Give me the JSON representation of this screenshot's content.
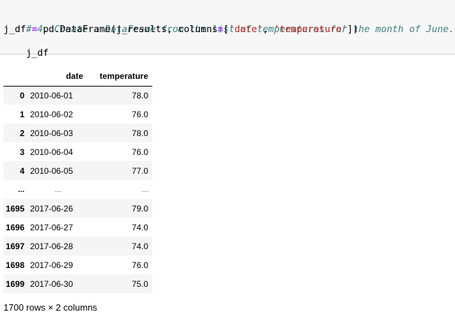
{
  "code_cell": {
    "line1_comment": "# 4. Create a DataFrame from the list of temperatures for the month of June.",
    "line2": {
      "var": "j_df",
      "op": "=",
      "call_open": "pd.DataFrame(j_results, columns",
      "eq": "=",
      "bracket_open": "[",
      "col1": "'date'",
      "comma": ", ",
      "col2": "'temperature'",
      "bracket_close": "])"
    },
    "line3": "j_df"
  },
  "dataframe": {
    "columns": [
      "date",
      "temperature"
    ],
    "rows": [
      {
        "index": "0",
        "date": "2010-06-01",
        "temperature": "78.0"
      },
      {
        "index": "1",
        "date": "2010-06-02",
        "temperature": "76.0"
      },
      {
        "index": "2",
        "date": "2010-06-03",
        "temperature": "78.0"
      },
      {
        "index": "3",
        "date": "2010-06-04",
        "temperature": "76.0"
      },
      {
        "index": "4",
        "date": "2010-06-05",
        "temperature": "77.0"
      },
      {
        "index": "...",
        "date": "...",
        "temperature": "..."
      },
      {
        "index": "1695",
        "date": "2017-06-26",
        "temperature": "79.0"
      },
      {
        "index": "1696",
        "date": "2017-06-27",
        "temperature": "74.0"
      },
      {
        "index": "1697",
        "date": "2017-06-28",
        "temperature": "74.0"
      },
      {
        "index": "1698",
        "date": "2017-06-29",
        "temperature": "76.0"
      },
      {
        "index": "1699",
        "date": "2017-06-30",
        "temperature": "75.0"
      }
    ]
  },
  "footer": "1700 rows × 2 columns"
}
